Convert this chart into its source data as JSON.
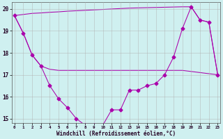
{
  "x": [
    0,
    1,
    2,
    3,
    4,
    5,
    6,
    7,
    8,
    9,
    10,
    11,
    12,
    13,
    14,
    15,
    16,
    17,
    18,
    19,
    20,
    21,
    22,
    23
  ],
  "temp_curve": [
    19.7,
    18.9,
    17.9,
    17.4,
    16.5,
    15.9,
    15.5,
    15.0,
    14.7,
    14.7,
    14.7,
    15.4,
    15.4,
    16.3,
    16.3,
    16.5,
    16.6,
    17.0,
    17.8,
    19.1,
    20.1,
    19.5,
    19.4,
    17.0
  ],
  "line_upper": [
    19.7,
    19.75,
    19.8,
    19.82,
    19.85,
    19.87,
    19.9,
    19.92,
    19.94,
    19.96,
    19.98,
    20.0,
    20.02,
    20.04,
    20.05,
    20.06,
    20.07,
    20.08,
    20.09,
    20.1,
    20.1,
    19.5,
    19.4,
    17.0
  ],
  "line_lower": [
    19.7,
    18.9,
    17.9,
    17.4,
    17.25,
    17.2,
    17.2,
    17.2,
    17.2,
    17.2,
    17.2,
    17.2,
    17.2,
    17.2,
    17.2,
    17.2,
    17.2,
    17.2,
    17.2,
    17.2,
    17.15,
    17.1,
    17.05,
    17.0
  ],
  "bg_color": "#cff0f0",
  "grid_color": "#b0b0b0",
  "line_color": "#aa00aa",
  "xlim": [
    0,
    23
  ],
  "ylim": [
    14.8,
    20.3
  ],
  "yticks": [
    15,
    16,
    17,
    18,
    19,
    20
  ],
  "xtick_labels": [
    "0",
    "1",
    "2",
    "3",
    "4",
    "5",
    "6",
    "7",
    "8",
    "9",
    "10",
    "11",
    "12",
    "13",
    "14",
    "15",
    "16",
    "17",
    "18",
    "19",
    "20",
    "21",
    "22",
    "23"
  ],
  "xlabel": "Windchill (Refroidissement éolien,°C)",
  "marker": "D",
  "marker_size": 2.5
}
